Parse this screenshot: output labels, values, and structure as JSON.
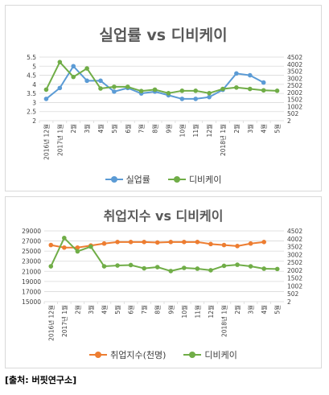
{
  "source": "[출처: 버핏연구소]",
  "chart_data": [
    {
      "type": "line",
      "title": "실업률 vs 디비케이",
      "categories": [
        "2016년 12월",
        "2017년 1월",
        "2월",
        "3월",
        "4월",
        "5월",
        "6월",
        "7월",
        "8월",
        "9월",
        "10월",
        "11월",
        "12월",
        "2018년 1월",
        "2월",
        "3월",
        "4월",
        "5월"
      ],
      "y_left": {
        "ylim": [
          2,
          5.5
        ],
        "ticks": [
          "2",
          "2.5",
          "3",
          "3.5",
          "4",
          "4.5",
          "5",
          "5.5"
        ]
      },
      "y_right": {
        "ylim": [
          2,
          4502
        ],
        "ticks": [
          "2",
          "502",
          "1002",
          "1502",
          "2002",
          "2502",
          "3002",
          "3502",
          "4002",
          "4502"
        ]
      },
      "series": [
        {
          "name": "실업률",
          "axis": "left",
          "color": "#5b9bd5",
          "values": [
            3.2,
            3.8,
            5.0,
            4.2,
            4.2,
            3.6,
            3.8,
            3.5,
            3.6,
            3.4,
            3.2,
            3.2,
            3.3,
            3.7,
            4.6,
            4.5,
            4.1,
            null
          ]
        },
        {
          "name": "디비케이",
          "axis": "right",
          "color": "#70ad47",
          "values": [
            2200,
            4150,
            3100,
            3700,
            2280,
            2400,
            2400,
            2100,
            2200,
            1950,
            2120,
            2120,
            1950,
            2250,
            2350,
            2250,
            2150,
            2120
          ]
        }
      ]
    },
    {
      "type": "line",
      "title": "취업지수 vs 디비케이",
      "categories": [
        "2016년 12월",
        "2017년 1월",
        "2월",
        "3월",
        "4월",
        "5월",
        "6월",
        "7월",
        "8월",
        "9월",
        "10월",
        "11월",
        "12월",
        "2018년 1월",
        "2월",
        "3월",
        "4월",
        "5월"
      ],
      "y_left": {
        "ylim": [
          15000,
          29000
        ],
        "ticks": [
          "15000",
          "17000",
          "19000",
          "21000",
          "23000",
          "25000",
          "27000",
          "29000"
        ]
      },
      "y_right": {
        "ylim": [
          2,
          4502
        ],
        "ticks": [
          "2",
          "502",
          "1002",
          "1502",
          "2002",
          "2502",
          "3002",
          "3502",
          "4002",
          "4502"
        ]
      },
      "series": [
        {
          "name": "취업지수(천명)",
          "axis": "left",
          "color": "#ed7d31",
          "values": [
            26200,
            25700,
            25700,
            26100,
            26500,
            26800,
            26800,
            26800,
            26700,
            26800,
            26800,
            26800,
            26400,
            26200,
            26000,
            26500,
            26800,
            null
          ]
        },
        {
          "name": "디비케이",
          "axis": "right",
          "color": "#70ad47",
          "values": [
            2250,
            4050,
            3200,
            3500,
            2250,
            2300,
            2330,
            2120,
            2200,
            1950,
            2150,
            2100,
            2000,
            2280,
            2350,
            2250,
            2100,
            2080
          ]
        }
      ]
    }
  ],
  "colors": {
    "grid": "#d9d9d9",
    "text": "#595959"
  }
}
